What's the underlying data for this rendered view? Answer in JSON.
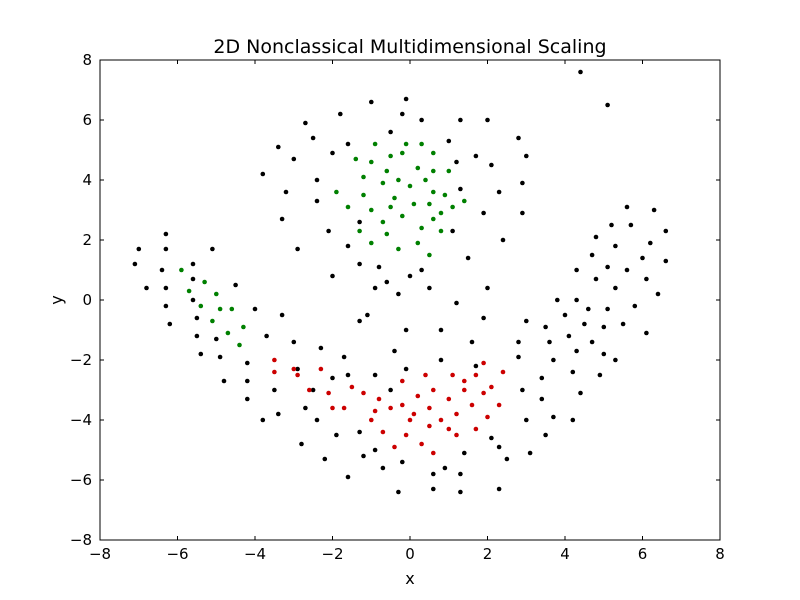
{
  "chart_data": {
    "type": "scatter",
    "title": "2D Nonclassical Multidimensional Scaling",
    "xlabel": "x",
    "ylabel": "y",
    "xlim": [
      -8,
      8
    ],
    "ylim": [
      -8,
      8
    ],
    "xticks": [
      "−8",
      "−6",
      "−4",
      "−2",
      "0",
      "2",
      "4",
      "6",
      "8"
    ],
    "yticks": [
      "−8",
      "−6",
      "−4",
      "−2",
      "0",
      "2",
      "4",
      "6",
      "8"
    ],
    "grid": false,
    "legend": "none",
    "series": [
      {
        "color": "#000000",
        "points": [
          [
            -7.0,
            1.7
          ],
          [
            -7.1,
            1.2
          ],
          [
            -6.8,
            0.4
          ],
          [
            -6.3,
            2.2
          ],
          [
            -6.3,
            1.7
          ],
          [
            -6.4,
            1.0
          ],
          [
            -6.3,
            0.4
          ],
          [
            -6.3,
            -0.2
          ],
          [
            -6.2,
            -0.8
          ],
          [
            -5.6,
            1.2
          ],
          [
            -5.6,
            0.7
          ],
          [
            -5.6,
            0.0
          ],
          [
            -5.5,
            -0.6
          ],
          [
            -5.5,
            -1.2
          ],
          [
            -5.4,
            -1.8
          ],
          [
            -5.1,
            1.7
          ],
          [
            -5.0,
            -1.3
          ],
          [
            -4.9,
            -1.9
          ],
          [
            -4.8,
            -2.7
          ],
          [
            -4.5,
            0.5
          ],
          [
            -4.2,
            -2.1
          ],
          [
            -4.2,
            -2.7
          ],
          [
            -4.2,
            -3.3
          ],
          [
            -4.0,
            -0.3
          ],
          [
            -3.8,
            -4.0
          ],
          [
            -3.7,
            -1.2
          ],
          [
            -3.5,
            -3.0
          ],
          [
            -3.4,
            -3.8
          ],
          [
            -3.3,
            -0.5
          ],
          [
            -3.0,
            -1.4
          ],
          [
            -2.9,
            -2.3
          ],
          [
            -2.8,
            -4.8
          ],
          [
            -2.7,
            -3.6
          ],
          [
            -2.5,
            -3.0
          ],
          [
            -2.4,
            -4.0
          ],
          [
            -2.3,
            -1.6
          ],
          [
            -2.2,
            -5.3
          ],
          [
            -2.0,
            -2.6
          ],
          [
            -1.9,
            -4.5
          ],
          [
            -1.7,
            -1.9
          ],
          [
            -1.6,
            -2.5
          ],
          [
            -1.6,
            -5.9
          ],
          [
            -1.3,
            -0.7
          ],
          [
            -1.3,
            -4.4
          ],
          [
            -1.2,
            -5.2
          ],
          [
            -1.1,
            -0.5
          ],
          [
            -0.9,
            -2.5
          ],
          [
            -0.9,
            -5.0
          ],
          [
            -0.7,
            -5.6
          ],
          [
            -0.5,
            -3.0
          ],
          [
            -0.4,
            -1.7
          ],
          [
            -0.3,
            -6.4
          ],
          [
            -0.2,
            -5.4
          ],
          [
            -0.1,
            -1.0
          ],
          [
            -0.1,
            -2.3
          ],
          [
            0.6,
            -6.3
          ],
          [
            0.6,
            -5.8
          ],
          [
            0.8,
            -2.0
          ],
          [
            0.8,
            -1.0
          ],
          [
            0.9,
            -5.6
          ],
          [
            1.2,
            -0.1
          ],
          [
            1.3,
            -5.8
          ],
          [
            1.3,
            -6.4
          ],
          [
            1.4,
            -5.1
          ],
          [
            1.6,
            -1.4
          ],
          [
            1.7,
            -2.2
          ],
          [
            1.9,
            -0.6
          ],
          [
            2.0,
            0.4
          ],
          [
            2.1,
            -4.6
          ],
          [
            2.3,
            -6.3
          ],
          [
            2.3,
            -4.9
          ],
          [
            2.5,
            -5.3
          ],
          [
            2.8,
            -1.9
          ],
          [
            2.8,
            -1.4
          ],
          [
            2.9,
            -3.0
          ],
          [
            3.0,
            -4.0
          ],
          [
            3.0,
            -0.7
          ],
          [
            3.1,
            -5.1
          ],
          [
            3.4,
            -2.6
          ],
          [
            3.4,
            -3.3
          ],
          [
            3.5,
            -4.5
          ],
          [
            3.5,
            -0.9
          ],
          [
            3.6,
            -1.4
          ],
          [
            3.7,
            -3.9
          ],
          [
            3.7,
            -2.0
          ],
          [
            3.8,
            0.0
          ],
          [
            4.0,
            -0.5
          ],
          [
            4.1,
            -1.2
          ],
          [
            4.2,
            -4.0
          ],
          [
            4.2,
            -2.4
          ],
          [
            4.3,
            -1.7
          ],
          [
            4.3,
            0.0
          ],
          [
            4.3,
            1.0
          ],
          [
            4.4,
            -3.1
          ],
          [
            4.5,
            -0.8
          ],
          [
            4.6,
            -0.3
          ],
          [
            4.7,
            -1.4
          ],
          [
            4.7,
            1.5
          ],
          [
            4.8,
            0.7
          ],
          [
            4.8,
            2.1
          ],
          [
            4.9,
            -2.5
          ],
          [
            5.0,
            -1.8
          ],
          [
            5.0,
            -0.9
          ],
          [
            5.1,
            -0.3
          ],
          [
            5.1,
            1.1
          ],
          [
            5.2,
            2.5
          ],
          [
            5.3,
            0.4
          ],
          [
            5.3,
            1.8
          ],
          [
            5.3,
            -2.0
          ],
          [
            5.5,
            -0.8
          ],
          [
            5.6,
            3.1
          ],
          [
            5.6,
            1.0
          ],
          [
            5.7,
            2.5
          ],
          [
            5.8,
            -0.2
          ],
          [
            6.0,
            1.4
          ],
          [
            6.1,
            0.7
          ],
          [
            6.1,
            -1.1
          ],
          [
            6.2,
            1.9
          ],
          [
            6.3,
            3.0
          ],
          [
            6.4,
            0.2
          ],
          [
            6.6,
            2.3
          ],
          [
            6.6,
            1.3
          ],
          [
            -3.8,
            4.2
          ],
          [
            -3.4,
            5.1
          ],
          [
            -3.2,
            3.6
          ],
          [
            -3.0,
            4.7
          ],
          [
            -2.7,
            5.9
          ],
          [
            -2.5,
            5.4
          ],
          [
            -2.4,
            4.0
          ],
          [
            -2.4,
            3.3
          ],
          [
            -2.1,
            2.3
          ],
          [
            -2.0,
            4.9
          ],
          [
            -2.0,
            0.8
          ],
          [
            -1.8,
            6.2
          ],
          [
            -1.6,
            1.8
          ],
          [
            -1.6,
            5.2
          ],
          [
            -1.3,
            1.2
          ],
          [
            -1.3,
            2.6
          ],
          [
            -1.0,
            6.6
          ],
          [
            -0.9,
            0.4
          ],
          [
            -0.8,
            1.1
          ],
          [
            -0.6,
            0.6
          ],
          [
            -0.5,
            5.6
          ],
          [
            -0.3,
            0.2
          ],
          [
            -0.1,
            6.7
          ],
          [
            -0.2,
            6.2
          ],
          [
            0.0,
            0.8
          ],
          [
            0.3,
            6.0
          ],
          [
            0.3,
            1.0
          ],
          [
            0.5,
            0.4
          ],
          [
            1.0,
            5.3
          ],
          [
            1.1,
            2.3
          ],
          [
            1.2,
            4.6
          ],
          [
            1.3,
            6.0
          ],
          [
            1.3,
            3.7
          ],
          [
            1.5,
            1.4
          ],
          [
            1.7,
            4.8
          ],
          [
            1.9,
            2.9
          ],
          [
            2.0,
            6.0
          ],
          [
            2.1,
            4.5
          ],
          [
            2.3,
            3.6
          ],
          [
            2.4,
            2.0
          ],
          [
            2.8,
            5.4
          ],
          [
            2.9,
            3.9
          ],
          [
            2.9,
            2.9
          ],
          [
            3.0,
            4.8
          ],
          [
            4.4,
            7.6
          ],
          [
            5.1,
            6.5
          ],
          [
            -3.3,
            2.7
          ],
          [
            -2.9,
            1.7
          ]
        ]
      },
      {
        "color": "#008000",
        "points": [
          [
            -5.9,
            1.0
          ],
          [
            -5.7,
            0.3
          ],
          [
            -5.3,
            0.6
          ],
          [
            -5.4,
            -0.2
          ],
          [
            -5.0,
            0.2
          ],
          [
            -4.9,
            -0.3
          ],
          [
            -5.1,
            -0.7
          ],
          [
            -4.7,
            -1.1
          ],
          [
            -4.6,
            -0.3
          ],
          [
            -4.4,
            -1.5
          ],
          [
            -4.3,
            -0.9
          ],
          [
            -1.4,
            4.7
          ],
          [
            -1.2,
            4.1
          ],
          [
            -1.0,
            4.6
          ],
          [
            -0.9,
            5.2
          ],
          [
            -0.7,
            3.9
          ],
          [
            -0.6,
            4.3
          ],
          [
            -0.5,
            4.8
          ],
          [
            -0.4,
            3.4
          ],
          [
            -0.3,
            4.0
          ],
          [
            -0.2,
            4.9
          ],
          [
            -0.1,
            5.2
          ],
          [
            0.0,
            3.8
          ],
          [
            0.2,
            4.4
          ],
          [
            0.3,
            5.2
          ],
          [
            0.4,
            4.0
          ],
          [
            0.5,
            3.2
          ],
          [
            0.6,
            4.9
          ],
          [
            0.6,
            4.3
          ],
          [
            0.6,
            3.6
          ],
          [
            0.8,
            2.9
          ],
          [
            0.9,
            3.5
          ],
          [
            1.0,
            4.3
          ],
          [
            1.1,
            3.1
          ],
          [
            1.4,
            3.3
          ],
          [
            -1.9,
            3.6
          ],
          [
            -1.6,
            3.1
          ],
          [
            -1.2,
            3.5
          ],
          [
            -1.0,
            3.0
          ],
          [
            -0.7,
            2.6
          ],
          [
            -0.5,
            3.1
          ],
          [
            -0.2,
            2.8
          ],
          [
            0.1,
            3.2
          ],
          [
            0.3,
            2.4
          ],
          [
            0.6,
            2.7
          ],
          [
            0.8,
            2.3
          ],
          [
            -1.3,
            2.3
          ],
          [
            -1.0,
            1.9
          ],
          [
            -0.6,
            2.2
          ],
          [
            -0.3,
            1.7
          ],
          [
            0.2,
            1.9
          ],
          [
            0.5,
            1.5
          ]
        ]
      },
      {
        "color": "#cc0000",
        "points": [
          [
            -3.5,
            -2.0
          ],
          [
            -3.5,
            -2.4
          ],
          [
            -2.9,
            -2.5
          ],
          [
            -2.6,
            -3.0
          ],
          [
            -2.3,
            -2.3
          ],
          [
            -2.1,
            -3.1
          ],
          [
            -1.7,
            -3.6
          ],
          [
            -1.5,
            -2.9
          ],
          [
            -1.2,
            -3.1
          ],
          [
            -1.0,
            -4.0
          ],
          [
            -0.8,
            -3.3
          ],
          [
            -0.7,
            -4.4
          ],
          [
            -0.5,
            -3.6
          ],
          [
            -0.4,
            -4.9
          ],
          [
            -0.2,
            -2.7
          ],
          [
            -0.2,
            -3.5
          ],
          [
            -0.1,
            -4.5
          ],
          [
            0.1,
            -3.8
          ],
          [
            0.2,
            -3.2
          ],
          [
            0.3,
            -4.8
          ],
          [
            0.4,
            -2.5
          ],
          [
            0.5,
            -3.6
          ],
          [
            0.5,
            -4.2
          ],
          [
            0.6,
            -5.1
          ],
          [
            0.6,
            -3.0
          ],
          [
            0.8,
            -4.0
          ],
          [
            1.0,
            -3.3
          ],
          [
            1.1,
            -2.5
          ],
          [
            1.2,
            -3.8
          ],
          [
            1.2,
            -4.5
          ],
          [
            1.4,
            -3.0
          ],
          [
            1.6,
            -3.5
          ],
          [
            1.7,
            -4.3
          ],
          [
            1.7,
            -2.5
          ],
          [
            1.9,
            -2.1
          ],
          [
            1.9,
            -3.1
          ],
          [
            2.1,
            -2.9
          ],
          [
            2.3,
            -3.5
          ],
          [
            2.4,
            -2.4
          ],
          [
            -2.0,
            -3.6
          ],
          [
            -0.9,
            -3.7
          ],
          [
            0.0,
            -4.0
          ],
          [
            1.0,
            -4.3
          ],
          [
            2.0,
            -3.9
          ],
          [
            -3.0,
            -2.3
          ],
          [
            1.4,
            -2.7
          ]
        ]
      }
    ]
  }
}
